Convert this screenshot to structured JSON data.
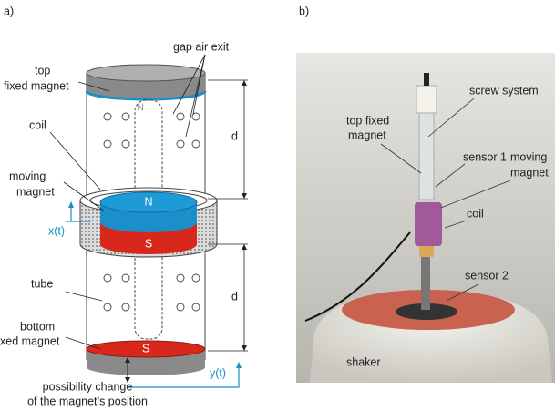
{
  "panel_a": {
    "label": "a)",
    "gap_air_exit": "gap air exit",
    "top_magnet": [
      "top",
      "fixed magnet"
    ],
    "coil": "coil",
    "moving_magnet": [
      "moving",
      "magnet"
    ],
    "rod_pole": "N",
    "moving_north": "N",
    "moving_south": "S",
    "x_signal": "x(t)",
    "distance_upper": "d",
    "distance_lower": "d",
    "tube": "tube",
    "bottom_magnet": [
      "bottom",
      "xed magnet"
    ],
    "bottom_south": "S",
    "y_signal": "y(t)",
    "note": [
      "possibility change",
      "of the magnet’s position"
    ]
  },
  "panel_b": {
    "label": "b)",
    "screw_system": "screw system",
    "top_magnet": [
      "top fixed",
      "magnet"
    ],
    "sensor_1": "sensor 1",
    "moving_magnet": [
      "moving",
      "magnet"
    ],
    "coil": "coil",
    "sensor_2": "sensor 2",
    "shaker": "shaker"
  }
}
